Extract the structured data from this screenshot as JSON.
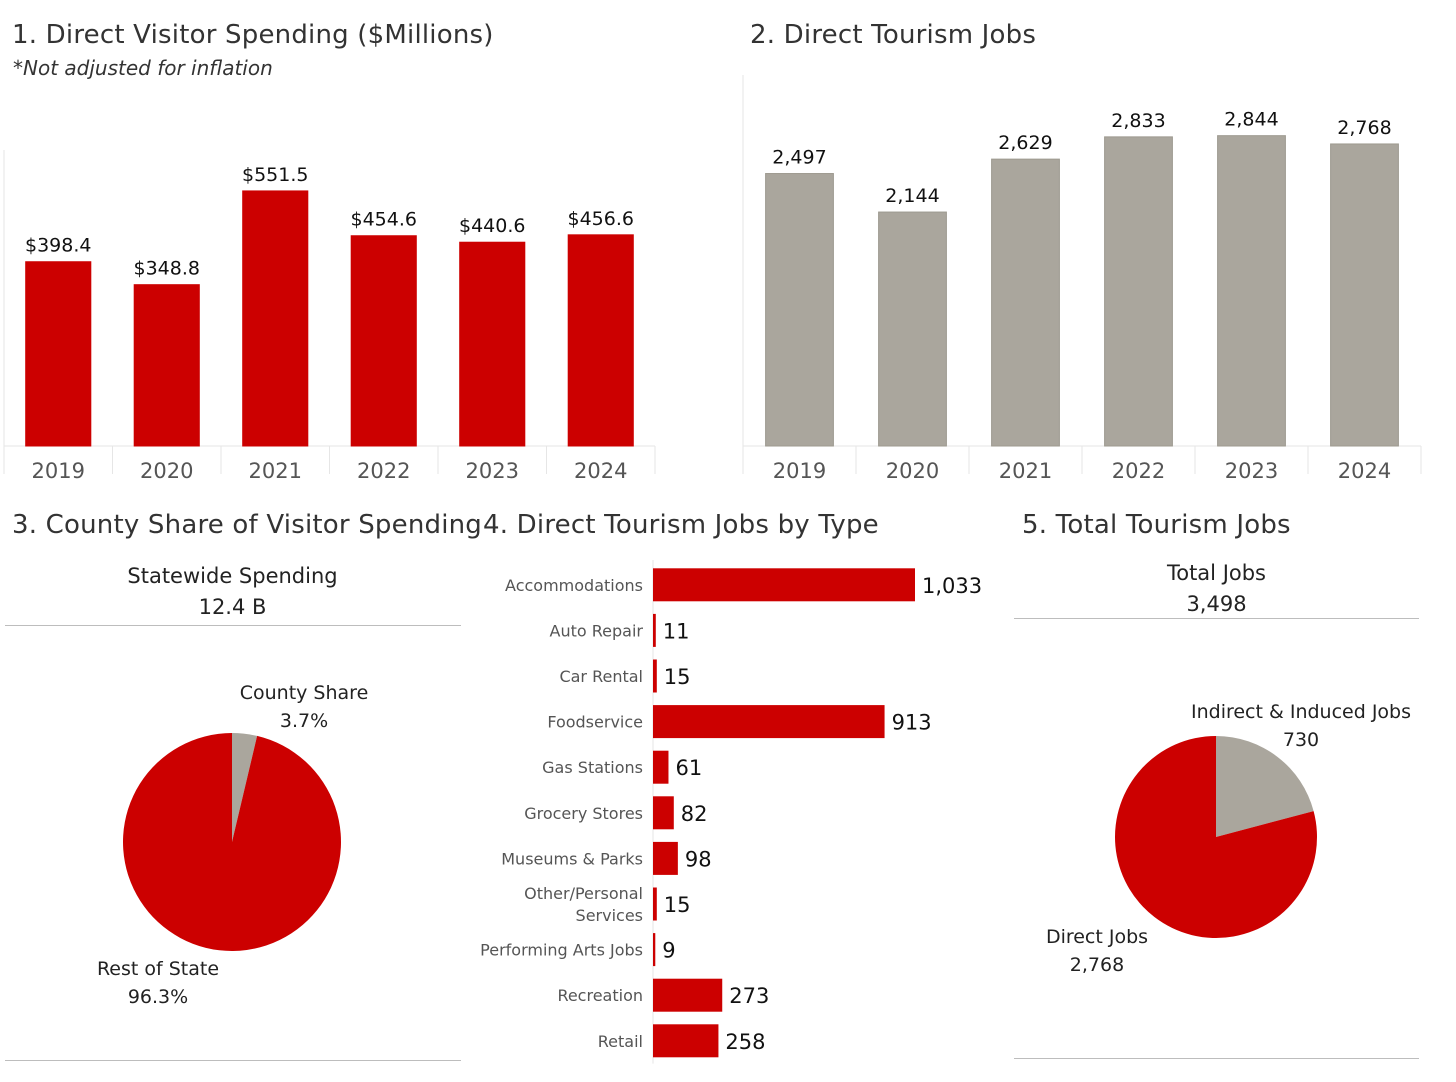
{
  "colors": {
    "red": "#cc0000",
    "gray": "#aaa69d",
    "axis": "#e6e6e6",
    "rule": "#bdbdbd"
  },
  "chart_data": [
    {
      "type": "bar",
      "title": "1. Direct Visitor Spending ($Millions)",
      "subtitle": "*Not adjusted for inflation",
      "categories": [
        "2019",
        "2020",
        "2021",
        "2022",
        "2023",
        "2024"
      ],
      "values": [
        398.4,
        348.8,
        551.5,
        454.6,
        440.6,
        456.6
      ],
      "labels": [
        "$398.4",
        "$348.8",
        "$551.5",
        "$454.6",
        "$440.6",
        "$456.6"
      ],
      "ylim": [
        0,
        640
      ],
      "color": "#cc0000"
    },
    {
      "type": "bar",
      "title": "2. Direct Tourism Jobs",
      "categories": [
        "2019",
        "2020",
        "2021",
        "2022",
        "2023",
        "2024"
      ],
      "values": [
        2497,
        2144,
        2629,
        2833,
        2844,
        2768
      ],
      "labels": [
        "2,497",
        "2,144",
        "2,629",
        "2,833",
        "2,844",
        "2,768"
      ],
      "ylim": [
        0,
        3400
      ],
      "color": "#aaa69d"
    },
    {
      "type": "pie",
      "title": "3. County Share of Visitor Spending",
      "header_label": "Statewide Spending",
      "header_value": "12.4 B",
      "slices": [
        {
          "name": "County Share",
          "value": 3.7,
          "label": "3.7%",
          "color": "#aaa69d"
        },
        {
          "name": "Rest of State",
          "value": 96.3,
          "label": "96.3%",
          "color": "#cc0000"
        }
      ]
    },
    {
      "type": "bar",
      "orientation": "horizontal",
      "title": "4. Direct Tourism Jobs by Type",
      "categories": [
        "Accommodations",
        "Auto Repair",
        "Car Rental",
        "Foodservice",
        "Gas Stations",
        "Grocery Stores",
        "Museums & Parks",
        "Other/Personal Services",
        "Performing Arts Jobs",
        "Recreation",
        "Retail"
      ],
      "category_lines": [
        [
          "Accommodations"
        ],
        [
          "Auto Repair"
        ],
        [
          "Car Rental"
        ],
        [
          "Foodservice"
        ],
        [
          "Gas Stations"
        ],
        [
          "Grocery Stores"
        ],
        [
          "Museums & Parks"
        ],
        [
          "Other/Personal",
          "Services"
        ],
        [
          "Performing Arts Jobs"
        ],
        [
          "Recreation"
        ],
        [
          "Retail"
        ]
      ],
      "values": [
        1033,
        11,
        15,
        913,
        61,
        82,
        98,
        15,
        9,
        273,
        258
      ],
      "labels": [
        "1,033",
        "11",
        "15",
        "913",
        "61",
        "82",
        "98",
        "15",
        "9",
        "273",
        "258"
      ],
      "xlim": [
        0,
        1033
      ],
      "color": "#cc0000"
    },
    {
      "type": "pie",
      "title": "5. Total Tourism Jobs",
      "header_label": "Total Jobs",
      "header_value": "3,498",
      "slices": [
        {
          "name": "Indirect & Induced Jobs",
          "value": 730,
          "label": "730",
          "color": "#aaa69d"
        },
        {
          "name": "Direct Jobs",
          "value": 2768,
          "label": "2,768",
          "color": "#cc0000"
        }
      ]
    }
  ]
}
